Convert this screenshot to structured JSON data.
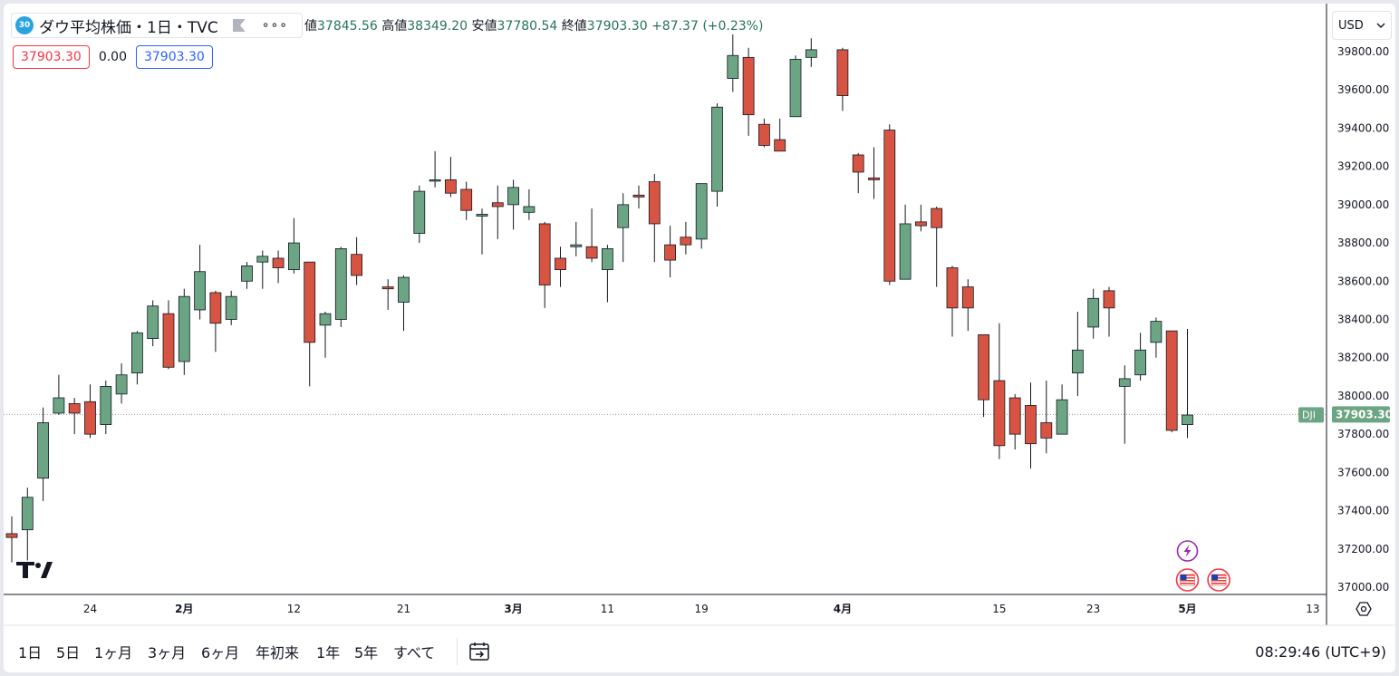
{
  "legend": {
    "badge": "30",
    "title": "ダウ平均株価・1日・TVC",
    "more": "∘∘∘"
  },
  "ohlc": {
    "open_label": "値",
    "open": "37845.56",
    "high_label": "高値",
    "high": "38349.20",
    "low_label": "安値",
    "low": "37780.54",
    "close_label": "終値",
    "close": "37903.30",
    "change": "+87.37 (+0.23%)"
  },
  "price_boxes": {
    "sell": "37903.30",
    "spread": "0.00",
    "buy": "37903.30"
  },
  "currency": {
    "label": "USD"
  },
  "colors": {
    "up": "#6ba583",
    "down": "#d75442",
    "axis_text": "#131722",
    "last_price_bg": "#6ba583",
    "grid_dotted": "#9598a1"
  },
  "chart_data": {
    "type": "candlestick",
    "symbol": "DJI",
    "last_price": "37903.30",
    "ylim": [
      36960,
      39980
    ],
    "y_ticks": [
      "37000.00",
      "37200.00",
      "37400.00",
      "37600.00",
      "37800.00",
      "38000.00",
      "38200.00",
      "38400.00",
      "38600.00",
      "38800.00",
      "39000.00",
      "39200.00",
      "39400.00",
      "39600.00",
      "39800.00"
    ],
    "x_ticks": [
      {
        "label": "24",
        "bold": false,
        "date": "2024-01-24"
      },
      {
        "label": "2月",
        "bold": true,
        "date": "2024-02-01"
      },
      {
        "label": "12",
        "bold": false,
        "date": "2024-02-12"
      },
      {
        "label": "21",
        "bold": false,
        "date": "2024-02-21"
      },
      {
        "label": "3月",
        "bold": true,
        "date": "2024-03-01"
      },
      {
        "label": "11",
        "bold": false,
        "date": "2024-03-11"
      },
      {
        "label": "19",
        "bold": false,
        "date": "2024-03-19"
      },
      {
        "label": "4月",
        "bold": true,
        "date": "2024-04-01"
      },
      {
        "label": "15",
        "bold": false,
        "date": "2024-04-15"
      },
      {
        "label": "23",
        "bold": false,
        "date": "2024-04-23"
      },
      {
        "label": "5月",
        "bold": true,
        "date": "2024-05-01"
      },
      {
        "label": "13",
        "bold": false,
        "date": "2024-05-13"
      }
    ],
    "candles": [
      {
        "date": "2024-01-17",
        "o": 37280,
        "h": 37370,
        "l": 37130,
        "c": 37260
      },
      {
        "date": "2024-01-18",
        "o": 37300,
        "h": 37520,
        "l": 37140,
        "c": 37470
      },
      {
        "date": "2024-01-19",
        "o": 37570,
        "h": 37940,
        "l": 37450,
        "c": 37860
      },
      {
        "date": "2024-01-22",
        "o": 37910,
        "h": 38110,
        "l": 37900,
        "c": 37990
      },
      {
        "date": "2024-01-23",
        "o": 37960,
        "h": 37990,
        "l": 37800,
        "c": 37910
      },
      {
        "date": "2024-01-24",
        "o": 37970,
        "h": 38060,
        "l": 37780,
        "c": 37800
      },
      {
        "date": "2024-01-25",
        "o": 37850,
        "h": 38080,
        "l": 37800,
        "c": 38050
      },
      {
        "date": "2024-01-26",
        "o": 38010,
        "h": 38170,
        "l": 37960,
        "c": 38110
      },
      {
        "date": "2024-01-29",
        "o": 38120,
        "h": 38340,
        "l": 38060,
        "c": 38330
      },
      {
        "date": "2024-01-30",
        "o": 38300,
        "h": 38500,
        "l": 38260,
        "c": 38470
      },
      {
        "date": "2024-01-31",
        "o": 38430,
        "h": 38500,
        "l": 38140,
        "c": 38150
      },
      {
        "date": "2024-02-01",
        "o": 38180,
        "h": 38560,
        "l": 38110,
        "c": 38520
      },
      {
        "date": "2024-02-02",
        "o": 38450,
        "h": 38790,
        "l": 38400,
        "c": 38650
      },
      {
        "date": "2024-02-05",
        "o": 38540,
        "h": 38550,
        "l": 38230,
        "c": 38380
      },
      {
        "date": "2024-02-06",
        "o": 38400,
        "h": 38550,
        "l": 38370,
        "c": 38520
      },
      {
        "date": "2024-02-07",
        "o": 38600,
        "h": 38700,
        "l": 38560,
        "c": 38680
      },
      {
        "date": "2024-02-08",
        "o": 38700,
        "h": 38760,
        "l": 38560,
        "c": 38730
      },
      {
        "date": "2024-02-09",
        "o": 38720,
        "h": 38760,
        "l": 38590,
        "c": 38670
      },
      {
        "date": "2024-02-12",
        "o": 38660,
        "h": 38930,
        "l": 38640,
        "c": 38800
      },
      {
        "date": "2024-02-13",
        "o": 38700,
        "h": 38700,
        "l": 38050,
        "c": 38280
      },
      {
        "date": "2024-02-14",
        "o": 38370,
        "h": 38440,
        "l": 38200,
        "c": 38430
      },
      {
        "date": "2024-02-15",
        "o": 38400,
        "h": 38780,
        "l": 38360,
        "c": 38770
      },
      {
        "date": "2024-02-16",
        "o": 38740,
        "h": 38830,
        "l": 38580,
        "c": 38630
      },
      {
        "date": "2024-02-20",
        "o": 38570,
        "h": 38610,
        "l": 38450,
        "c": 38560
      },
      {
        "date": "2024-02-21",
        "o": 38490,
        "h": 38630,
        "l": 38340,
        "c": 38620
      },
      {
        "date": "2024-02-22",
        "o": 38850,
        "h": 39100,
        "l": 38800,
        "c": 39070
      },
      {
        "date": "2024-02-23",
        "o": 39130,
        "h": 39280,
        "l": 39090,
        "c": 39130
      },
      {
        "date": "2024-02-26",
        "o": 39130,
        "h": 39250,
        "l": 39040,
        "c": 39060
      },
      {
        "date": "2024-02-27",
        "o": 39080,
        "h": 39120,
        "l": 38920,
        "c": 38970
      },
      {
        "date": "2024-02-28",
        "o": 38940,
        "h": 38980,
        "l": 38740,
        "c": 38950
      },
      {
        "date": "2024-02-29",
        "o": 39010,
        "h": 39100,
        "l": 38820,
        "c": 38990
      },
      {
        "date": "2024-03-01",
        "o": 39000,
        "h": 39130,
        "l": 38870,
        "c": 39090
      },
      {
        "date": "2024-03-04",
        "o": 38960,
        "h": 39080,
        "l": 38920,
        "c": 38990
      },
      {
        "date": "2024-03-05",
        "o": 38900,
        "h": 38910,
        "l": 38460,
        "c": 38580
      },
      {
        "date": "2024-03-06",
        "o": 38720,
        "h": 38780,
        "l": 38570,
        "c": 38660
      },
      {
        "date": "2024-03-07",
        "o": 38780,
        "h": 38910,
        "l": 38730,
        "c": 38790
      },
      {
        "date": "2024-03-08",
        "o": 38780,
        "h": 38980,
        "l": 38700,
        "c": 38720
      },
      {
        "date": "2024-03-11",
        "o": 38660,
        "h": 38790,
        "l": 38490,
        "c": 38770
      },
      {
        "date": "2024-03-12",
        "o": 38880,
        "h": 39060,
        "l": 38700,
        "c": 39000
      },
      {
        "date": "2024-03-13",
        "o": 39050,
        "h": 39100,
        "l": 38980,
        "c": 39040
      },
      {
        "date": "2024-03-14",
        "o": 39120,
        "h": 39160,
        "l": 38700,
        "c": 38900
      },
      {
        "date": "2024-03-15",
        "o": 38790,
        "h": 38890,
        "l": 38620,
        "c": 38710
      },
      {
        "date": "2024-03-18",
        "o": 38830,
        "h": 38910,
        "l": 38740,
        "c": 38790
      },
      {
        "date": "2024-03-19",
        "o": 38820,
        "h": 39100,
        "l": 38770,
        "c": 39110
      },
      {
        "date": "2024-03-20",
        "o": 39070,
        "h": 39530,
        "l": 38990,
        "c": 39510
      },
      {
        "date": "2024-03-21",
        "o": 39660,
        "h": 39890,
        "l": 39590,
        "c": 39780
      },
      {
        "date": "2024-03-22",
        "o": 39770,
        "h": 39820,
        "l": 39360,
        "c": 39470
      },
      {
        "date": "2024-03-25",
        "o": 39420,
        "h": 39450,
        "l": 39300,
        "c": 39310
      },
      {
        "date": "2024-03-26",
        "o": 39340,
        "h": 39450,
        "l": 39280,
        "c": 39280
      },
      {
        "date": "2024-03-27",
        "o": 39460,
        "h": 39780,
        "l": 39460,
        "c": 39760
      },
      {
        "date": "2024-03-28",
        "o": 39770,
        "h": 39870,
        "l": 39720,
        "c": 39810
      },
      {
        "date": "2024-04-01",
        "o": 39810,
        "h": 39820,
        "l": 39490,
        "c": 39570
      },
      {
        "date": "2024-04-02",
        "o": 39260,
        "h": 39270,
        "l": 39060,
        "c": 39170
      },
      {
        "date": "2024-04-03",
        "o": 39140,
        "h": 39300,
        "l": 39030,
        "c": 39130
      },
      {
        "date": "2024-04-04",
        "o": 39390,
        "h": 39420,
        "l": 38580,
        "c": 38600
      },
      {
        "date": "2024-04-05",
        "o": 38610,
        "h": 39000,
        "l": 38610,
        "c": 38900
      },
      {
        "date": "2024-04-08",
        "o": 38910,
        "h": 39000,
        "l": 38860,
        "c": 38890
      },
      {
        "date": "2024-04-09",
        "o": 38980,
        "h": 38990,
        "l": 38570,
        "c": 38880
      },
      {
        "date": "2024-04-10",
        "o": 38670,
        "h": 38680,
        "l": 38310,
        "c": 38460
      },
      {
        "date": "2024-04-11",
        "o": 38570,
        "h": 38610,
        "l": 38340,
        "c": 38460
      },
      {
        "date": "2024-04-12",
        "o": 38320,
        "h": 38320,
        "l": 37890,
        "c": 37980
      },
      {
        "date": "2024-04-15",
        "o": 38080,
        "h": 38380,
        "l": 37670,
        "c": 37740
      },
      {
        "date": "2024-04-16",
        "o": 37990,
        "h": 38010,
        "l": 37720,
        "c": 37800
      },
      {
        "date": "2024-04-17",
        "o": 37950,
        "h": 38070,
        "l": 37620,
        "c": 37750
      },
      {
        "date": "2024-04-18",
        "o": 37860,
        "h": 38080,
        "l": 37700,
        "c": 37780
      },
      {
        "date": "2024-04-19",
        "o": 37800,
        "h": 38060,
        "l": 37800,
        "c": 37980
      },
      {
        "date": "2024-04-22",
        "o": 38120,
        "h": 38440,
        "l": 38000,
        "c": 38240
      },
      {
        "date": "2024-04-23",
        "o": 38360,
        "h": 38560,
        "l": 38300,
        "c": 38510
      },
      {
        "date": "2024-04-24",
        "o": 38550,
        "h": 38570,
        "l": 38310,
        "c": 38460
      },
      {
        "date": "2024-04-25",
        "o": 38050,
        "h": 38160,
        "l": 37750,
        "c": 38090
      },
      {
        "date": "2024-04-26",
        "o": 38110,
        "h": 38330,
        "l": 38080,
        "c": 38240
      },
      {
        "date": "2024-04-29",
        "o": 38280,
        "h": 38410,
        "l": 38200,
        "c": 38390
      },
      {
        "date": "2024-04-30",
        "o": 38340,
        "h": 38340,
        "l": 37810,
        "c": 37820
      },
      {
        "date": "2024-05-01",
        "o": 37850,
        "h": 38350,
        "l": 37780,
        "c": 37900
      }
    ],
    "x_slots": {
      "first_date": "2024-01-17",
      "last_visible_tick": "2024-05-13"
    },
    "events": [
      {
        "icon": "lightning-icon",
        "date": "2024-05-01"
      },
      {
        "icon": "us-flag-icon",
        "date": "2024-05-01"
      },
      {
        "icon": "us-flag-icon",
        "date": "2024-05-03"
      }
    ]
  },
  "bottom": {
    "ranges": [
      "1日",
      "5日",
      "1ヶ月",
      "3ヶ月",
      "6ヶ月",
      "年初来",
      "1年",
      "5年",
      "すべて"
    ],
    "clock": "08:29:46 (UTC+9)"
  }
}
